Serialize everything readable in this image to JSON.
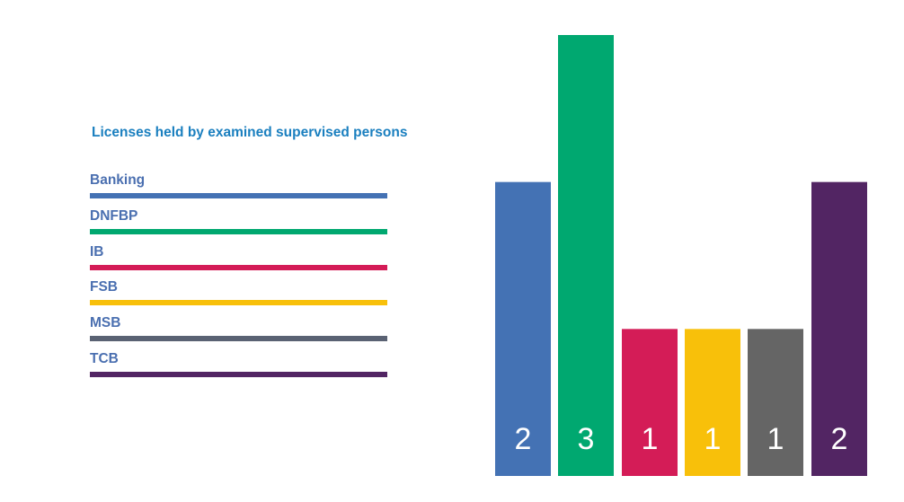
{
  "chart_data": {
    "type": "bar",
    "title": "Licenses held by examined supervised persons",
    "categories": [
      "Banking",
      "DNFBP",
      "IB",
      "FSB",
      "MSB",
      "TCB"
    ],
    "values": [
      2,
      3,
      1,
      1,
      1,
      2
    ],
    "colors": [
      "#4472b4",
      "#00a870",
      "#d41c57",
      "#f8c00a",
      "#656565",
      "#522563"
    ],
    "legend_colors": [
      "#4472b4",
      "#00a870",
      "#d41c57",
      "#f8c00a",
      "#5a6273",
      "#522563"
    ],
    "ylim": [
      0,
      3
    ],
    "grid": false,
    "legend_placement": "left",
    "data_labels": [
      "2",
      "3",
      "1",
      "1",
      "1",
      "2"
    ]
  }
}
